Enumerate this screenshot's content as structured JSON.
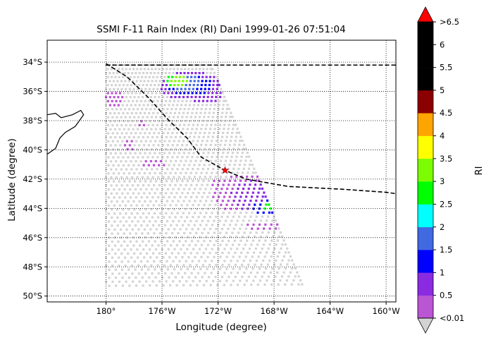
{
  "chart_data": {
    "type": "scatter",
    "title": "SSMI F-11 Rain Index (RI) Dani 1999-01-26 07:51:04",
    "xlabel": "Longitude (degree)",
    "ylabel": "Latitude (degree)",
    "xlim": [
      -184.2,
      -159.3
    ],
    "ylim": [
      -50.4,
      -32.5
    ],
    "xticks": [
      {
        "value": -180,
        "label": "180°"
      },
      {
        "value": -176,
        "label": "176°W"
      },
      {
        "value": -172,
        "label": "172°W"
      },
      {
        "value": -168,
        "label": "168°W"
      },
      {
        "value": -164,
        "label": "164°W"
      },
      {
        "value": -160,
        "label": "160°W"
      }
    ],
    "yticks": [
      {
        "value": -34,
        "label": "34°S"
      },
      {
        "value": -36,
        "label": "36°S"
      },
      {
        "value": -38,
        "label": "38°S"
      },
      {
        "value": -40,
        "label": "40°S"
      },
      {
        "value": -42,
        "label": "42°S"
      },
      {
        "value": -44,
        "label": "44°S"
      },
      {
        "value": -46,
        "label": "46°S"
      },
      {
        "value": -48,
        "label": "48°S"
      },
      {
        "value": -50,
        "label": "50°S"
      }
    ],
    "grid": true,
    "swath": {
      "corners": [
        [
          -180.0,
          -34.2
        ],
        [
          -172.5,
          -34.2
        ],
        [
          -166.0,
          -49.2
        ],
        [
          -180.0,
          -49.3
        ]
      ],
      "no_rain_color": "#d3d3d3"
    },
    "rain_areas": [
      {
        "level": "0.5",
        "center": [
          -174.0,
          -35.6
        ],
        "radius": [
          2.2,
          1.0
        ]
      },
      {
        "level": "0.5",
        "center": [
          -173.0,
          -36.2
        ],
        "radius": [
          1.2,
          0.7
        ]
      },
      {
        "level": "1",
        "center": [
          -174.0,
          -35.6
        ],
        "radius": [
          1.6,
          0.7
        ]
      },
      {
        "level": "1.5",
        "center": [
          -174.4,
          -35.4
        ],
        "radius": [
          1.2,
          0.55
        ]
      },
      {
        "level": "2.5",
        "center": [
          -175.0,
          -35.2
        ],
        "radius": [
          0.8,
          0.45
        ]
      },
      {
        "level": "3",
        "center": [
          -174.8,
          -35.3
        ],
        "radius": [
          0.6,
          0.35
        ]
      },
      {
        "level": "0.01",
        "center": [
          -179.5,
          -36.5
        ],
        "radius": [
          0.7,
          0.6
        ]
      },
      {
        "level": "0.01",
        "center": [
          -177.5,
          -38.2
        ],
        "radius": [
          0.3,
          0.3
        ]
      },
      {
        "level": "0.01",
        "center": [
          -178.4,
          -39.7
        ],
        "radius": [
          0.4,
          0.5
        ]
      },
      {
        "level": "0.01",
        "center": [
          -176.6,
          -41.0
        ],
        "radius": [
          0.9,
          0.3
        ]
      },
      {
        "level": "0.01",
        "center": [
          -172.0,
          -42.3
        ],
        "radius": [
          0.5,
          0.3
        ]
      },
      {
        "level": "0.01",
        "center": [
          -170.0,
          -43.0
        ],
        "radius": [
          2.5,
          1.3
        ]
      },
      {
        "level": "0.5",
        "center": [
          -169.5,
          -43.2
        ],
        "radius": [
          1.6,
          1.1
        ]
      },
      {
        "level": "1",
        "center": [
          -168.6,
          -44.0
        ],
        "radius": [
          0.9,
          0.55
        ]
      },
      {
        "level": "2.5",
        "center": [
          -168.3,
          -43.9
        ],
        "radius": [
          0.45,
          0.3
        ]
      },
      {
        "level": "0.01",
        "center": [
          -168.8,
          -45.2
        ],
        "radius": [
          1.2,
          0.3
        ]
      }
    ],
    "track": {
      "name": "Dani track",
      "style": "black dashed",
      "points": [
        [
          -180.0,
          -34.1
        ],
        [
          -178.5,
          -35.0
        ],
        [
          -177.0,
          -36.4
        ],
        [
          -175.5,
          -38.0
        ],
        [
          -174.2,
          -39.2
        ],
        [
          -173.2,
          -40.5
        ],
        [
          -171.5,
          -41.4
        ],
        [
          -170.0,
          -42.0
        ],
        [
          -167.0,
          -42.5
        ],
        [
          -163.0,
          -42.7
        ],
        [
          -160.0,
          -42.9
        ],
        [
          -159.3,
          -43.0
        ]
      ]
    },
    "boundary_line": {
      "style": "black dashed",
      "lat": -34.2
    },
    "storm_center": {
      "lon": -171.5,
      "lat": -41.4,
      "marker": "red star"
    },
    "colorbar": {
      "label": "RI",
      "labels": [
        "<0.01",
        "0.5",
        "1",
        "1.5",
        "2",
        "2.5",
        "3",
        "3.5",
        "4",
        "4.5",
        "5",
        "5.5",
        "6",
        ">6.5"
      ],
      "levels": [
        {
          "value": "0.01",
          "color": "#ba55d3"
        },
        {
          "value": "0.5",
          "color": "#8a2be2"
        },
        {
          "value": "1",
          "color": "#0000ff"
        },
        {
          "value": "1.5",
          "color": "#4169e1"
        },
        {
          "value": "2",
          "color": "#00ffff"
        },
        {
          "value": "2.5",
          "color": "#00ff00"
        },
        {
          "value": "3",
          "color": "#7cfc00"
        },
        {
          "value": "3.5",
          "color": "#ffff00"
        },
        {
          "value": "4",
          "color": "#ffa500"
        },
        {
          "value": "4.5",
          "color": "#8b0000"
        },
        {
          "value": "5",
          "color": "#000000"
        },
        {
          "value": "5.5",
          "color": "#000000"
        },
        {
          "value": "6",
          "color": "#000000"
        }
      ],
      "under_color": "#d3d3d3",
      "over_color": "#ff0000"
    }
  }
}
